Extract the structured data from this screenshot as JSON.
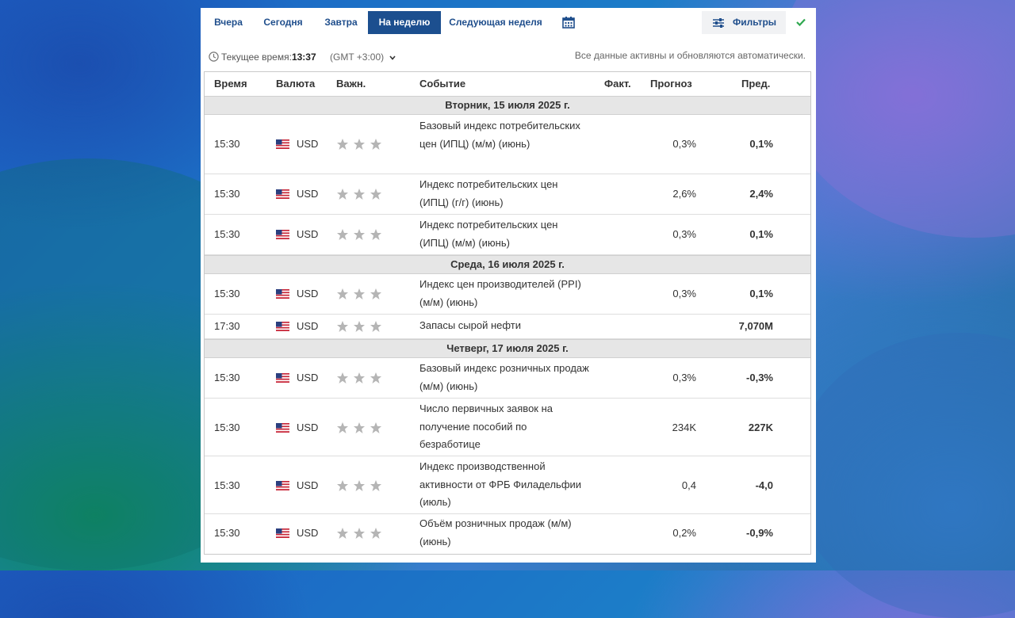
{
  "tabs": [
    "Вчера",
    "Сегодня",
    "Завтра",
    "На неделю",
    "Следующая неделя"
  ],
  "active_tab_index": 3,
  "filter_label": "Фильтры",
  "time_bar": {
    "prefix": "Текущее время:",
    "time": "13:37",
    "gmt": "(GMT +3:00)",
    "auto_update": "Все данные активны и обновляются автоматически."
  },
  "headers": {
    "time": "Время",
    "currency": "Валюта",
    "importance": "Важн.",
    "event": "Событие",
    "actual": "Факт.",
    "forecast": "Прогноз",
    "previous": "Пред."
  },
  "days": [
    {
      "label": "Вторник, 15 июля 2025 г.",
      "events": [
        {
          "time": "15:30",
          "currency": "USD",
          "event": "Базовый индекс потребительских цен (ИПЦ) (м/м) (июнь)",
          "actual": "",
          "forecast": "0,3%",
          "previous": "0,1%"
        },
        {
          "time": "15:30",
          "currency": "USD",
          "event": "Индекс потребительских цен (ИПЦ) (г/г) (июнь)",
          "actual": "",
          "forecast": "2,6%",
          "previous": "2,4%"
        },
        {
          "time": "15:30",
          "currency": "USD",
          "event": "Индекс потребительских цен (ИПЦ) (м/м) (июнь)",
          "actual": "",
          "forecast": "0,3%",
          "previous": "0,1%"
        }
      ]
    },
    {
      "label": "Среда, 16 июля 2025 г.",
      "events": [
        {
          "time": "15:30",
          "currency": "USD",
          "event": "Индекс цен производителей (PPI) (м/м) (июнь)",
          "actual": "",
          "forecast": "0,3%",
          "previous": "0,1%"
        },
        {
          "time": "17:30",
          "currency": "USD",
          "event": "Запасы сырой нефти",
          "actual": "",
          "forecast": "",
          "previous": "7,070M"
        }
      ]
    },
    {
      "label": "Четверг, 17 июля 2025 г.",
      "events": [
        {
          "time": "15:30",
          "currency": "USD",
          "event": "Базовый индекс розничных продаж (м/м) (июнь)",
          "actual": "",
          "forecast": "0,3%",
          "previous": "-0,3%"
        },
        {
          "time": "15:30",
          "currency": "USD",
          "event": "Число первичных заявок на получение пособий по безработице",
          "actual": "",
          "forecast": "234K",
          "previous": "227K"
        },
        {
          "time": "15:30",
          "currency": "USD",
          "event": "Индекс производственной активности от ФРБ Филадельфии (июль)",
          "actual": "",
          "forecast": "0,4",
          "previous": "-4,0"
        },
        {
          "time": "15:30",
          "currency": "USD",
          "event": "Объём розничных продаж (м/м) (июнь)",
          "actual": "",
          "forecast": "0,2%",
          "previous": "-0,9%"
        }
      ]
    }
  ],
  "colors": {
    "accent": "#1c4f8f",
    "link": "#1f4e8c",
    "check": "#2fa84f",
    "star": "#b5b5b5"
  }
}
